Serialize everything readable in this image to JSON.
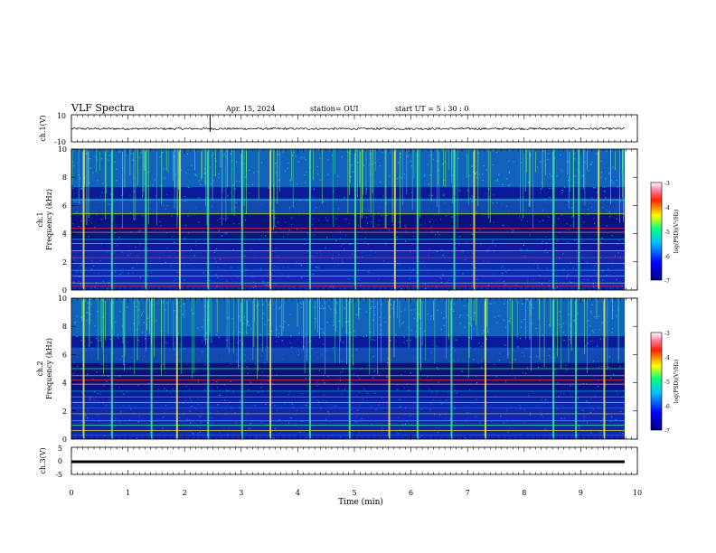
{
  "header": {
    "title": "VLF Spectra",
    "date": "Apr. 15, 2024",
    "station": "station= OUI",
    "start_ut": "start UT =  5 : 30 : 0"
  },
  "chart_data": [
    {
      "type": "line",
      "panel": "ch1-waveform",
      "ylabel": "ch.1(V)",
      "ylim": [
        -10,
        10
      ],
      "yticks": [
        "10",
        "-10"
      ],
      "xlim": [
        0,
        9.8
      ],
      "description_values": {
        "baseline": -0.3,
        "noise_amplitude": 1.5,
        "spike_at_min": 2.45
      },
      "color": "#000000"
    },
    {
      "type": "heatmap",
      "panel": "ch1-spectrogram",
      "ylabel": "ch.1\nFrequency (kHz)",
      "ylabel_line1": "ch.1",
      "ylabel_line2": "Frequency (kHz)",
      "ylim": [
        0,
        10
      ],
      "yticks": [
        "0",
        "2",
        "4",
        "6",
        "8",
        "10"
      ],
      "xlim": [
        0,
        9.8
      ],
      "colorbar": {
        "label": "log(PSD)(V²/Hz)",
        "range": [
          -7,
          -3
        ],
        "ticks": [
          "-3",
          "-4",
          "-5",
          "-6",
          "-7"
        ]
      },
      "horizontal_lines_khz": [
        0.3,
        0.5,
        1.0,
        1.4,
        1.9,
        2.3,
        2.8,
        3.3,
        3.6,
        4.1,
        4.4,
        5.4,
        6.4
      ],
      "spikes_min": [
        0.2,
        0.7,
        1.3,
        1.9,
        2.4,
        3.0,
        3.5,
        4.2,
        5.0,
        5.7,
        6.1,
        6.75,
        7.1,
        8.5,
        8.95,
        9.3
      ]
    },
    {
      "type": "heatmap",
      "panel": "ch2-spectrogram",
      "ylabel": "ch.2\nFrequency (kHz)",
      "ylabel_line1": "ch.2",
      "ylabel_line2": "Frequency (kHz)",
      "ylim": [
        0,
        10
      ],
      "yticks": [
        "0",
        "2",
        "4",
        "6",
        "8",
        "10"
      ],
      "xlim": [
        0,
        9.8
      ],
      "colorbar": {
        "label": "log(PSD)(V²/Hz)",
        "range": [
          -7,
          -3
        ],
        "ticks": [
          "-3",
          "-4",
          "-5",
          "-6",
          "-7"
        ]
      },
      "horizontal_lines_khz": [
        0.3,
        0.6,
        1.0,
        1.3,
        1.8,
        2.2,
        2.6,
        3.0,
        3.4,
        3.9,
        4.2,
        4.5,
        5.0
      ],
      "spikes_min": [
        0.2,
        0.7,
        1.4,
        1.85,
        2.4,
        3.0,
        3.5,
        4.2,
        4.9,
        5.6,
        6.1,
        6.7,
        7.3,
        8.5,
        8.9,
        9.4
      ]
    },
    {
      "type": "line",
      "panel": "ch3-waveform",
      "ylabel": "ch.3(V)",
      "ylim": [
        -5,
        5
      ],
      "yticks": [
        "5",
        "0",
        "-5"
      ],
      "xlim": [
        0,
        9.8
      ],
      "xlabel": "Time (min)",
      "xticks": [
        "0",
        "1",
        "2",
        "3",
        "4",
        "5",
        "6",
        "7",
        "8",
        "9",
        "10"
      ],
      "description_values": {
        "baseline": -1.5
      },
      "color": "#000000"
    }
  ],
  "colorbar_label": "log(PSD)(V²/Hz)",
  "colorbar_ticks": [
    "-3",
    "-4",
    "-5",
    "-6",
    "-7"
  ],
  "xlabel": "Time (min)",
  "xticks": [
    "0",
    "1",
    "2",
    "3",
    "4",
    "5",
    "6",
    "7",
    "8",
    "9",
    "10"
  ]
}
